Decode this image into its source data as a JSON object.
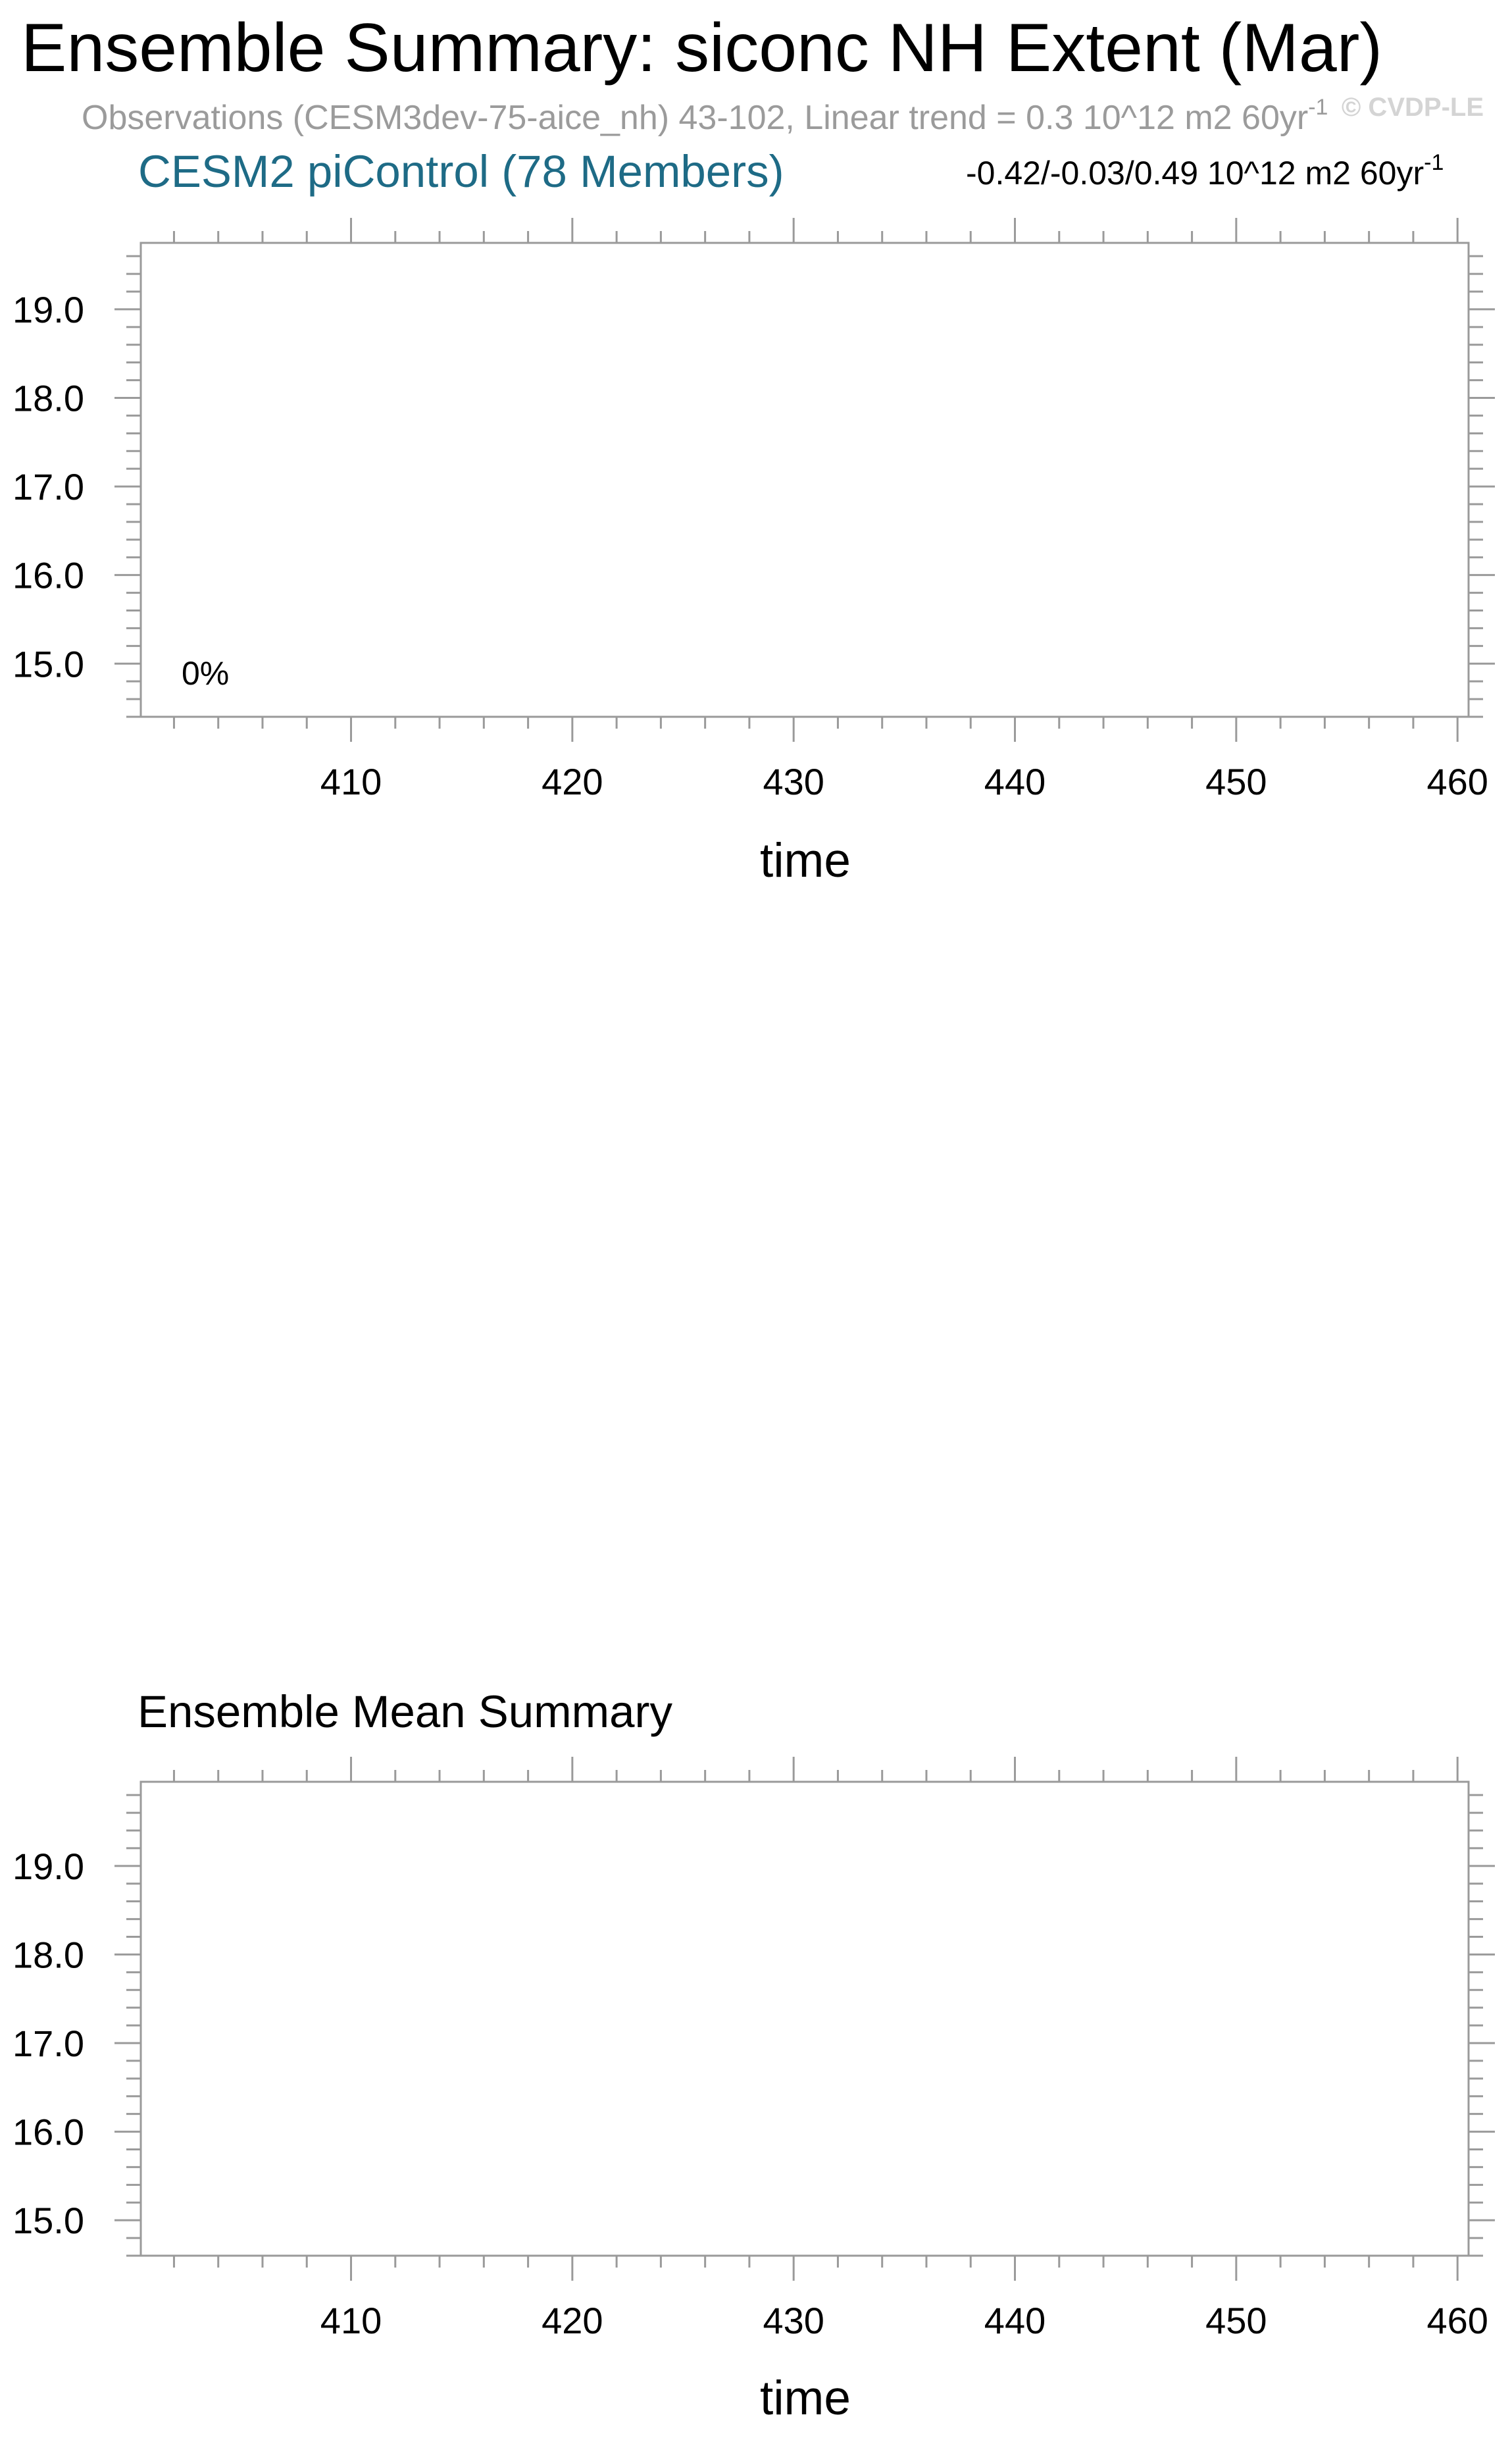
{
  "figure": {
    "title": "Ensemble Summary: siconc NH Extent (Mar)",
    "observations": "Observations (CESM3dev-75-aice_nh) 43-102, Linear trend = 0.3 10^12 m2 60yr",
    "observations_sup": "-1",
    "watermark": "© CVDP-LE",
    "colors": {
      "subtitle": "#1e6b86",
      "observations": "#9b9b9b",
      "frame": "#9a9a9a"
    }
  },
  "chart_data": [
    {
      "type": "line",
      "title": "CESM2 piControl (78 Members)",
      "stat_text": "-0.42/-0.03/0.49 10^12 m2 60yr",
      "stat_sup": "-1",
      "annotation": "0%",
      "xlabel": "time",
      "ylabel": "",
      "xlim": [
        400.5,
        460.5
      ],
      "ylim": [
        14.4,
        19.75
      ],
      "xticks": [
        410,
        420,
        430,
        440,
        450,
        460
      ],
      "xtick_labels": [
        "410",
        "420",
        "430",
        "440",
        "450",
        "460"
      ],
      "yticks": [
        15.0,
        16.0,
        17.0,
        18.0,
        19.0
      ],
      "ytick_labels": [
        "15.0",
        "16.0",
        "17.0",
        "18.0",
        "19.0"
      ],
      "series": []
    },
    {
      "type": "line",
      "title": "Ensemble Mean Summary",
      "xlabel": "time",
      "ylabel": "",
      "xlim": [
        400.5,
        460.5
      ],
      "ylim": [
        14.6,
        19.95
      ],
      "xticks": [
        410,
        420,
        430,
        440,
        450,
        460
      ],
      "xtick_labels": [
        "410",
        "420",
        "430",
        "440",
        "450",
        "460"
      ],
      "yticks": [
        15.0,
        16.0,
        17.0,
        18.0,
        19.0
      ],
      "ytick_labels": [
        "15.0",
        "16.0",
        "17.0",
        "18.0",
        "19.0"
      ],
      "series": []
    }
  ]
}
